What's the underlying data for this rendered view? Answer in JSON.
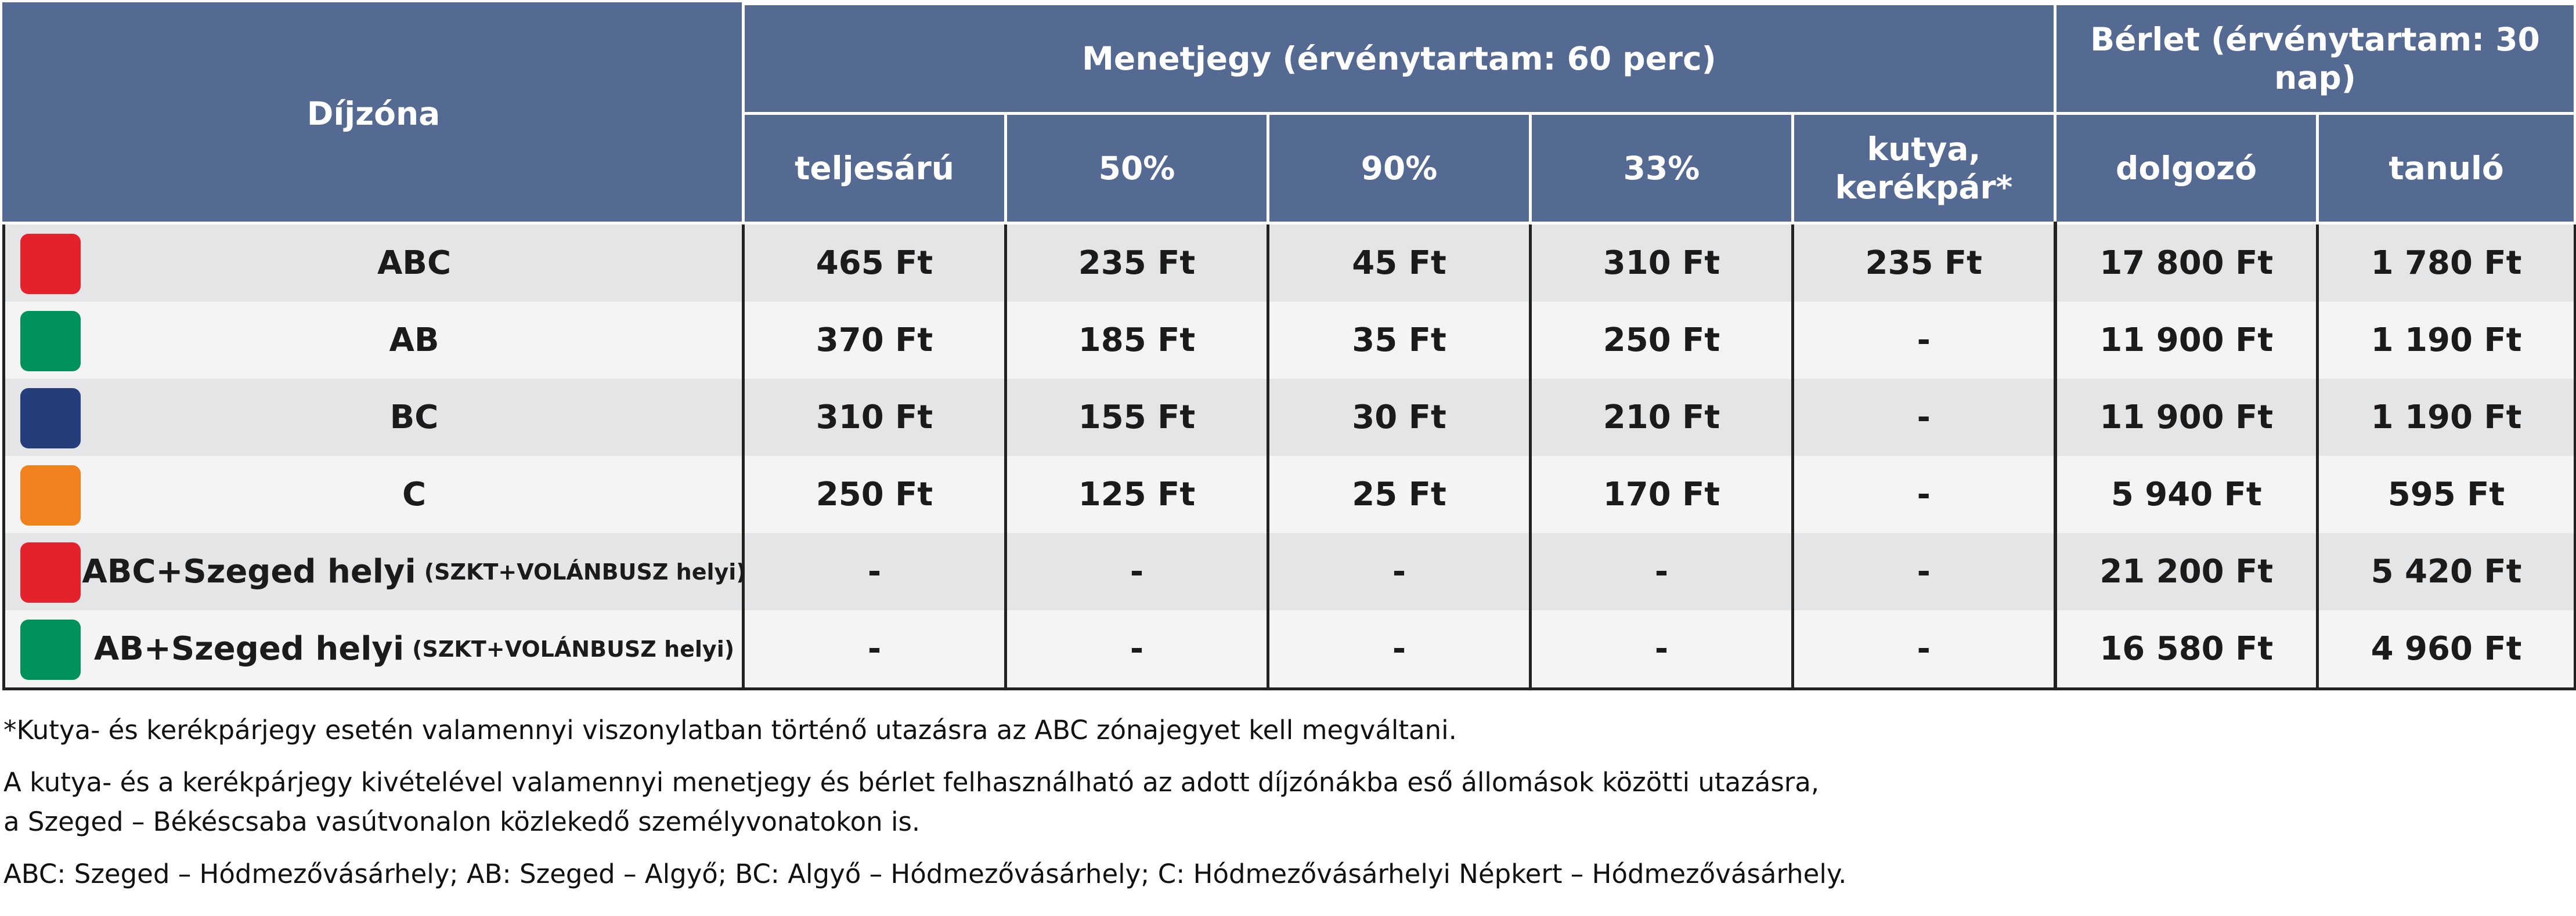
{
  "header": {
    "zone": "Díjzóna",
    "single": "Menetjegy (érvénytartam: 60 perc)",
    "pass": "Bérlet (érvénytartam: 30 nap)",
    "cols": [
      "teljesárú",
      "50%",
      "90%",
      "33%",
      "kutya,\nkerékpár*",
      "dolgozó",
      "tanuló"
    ]
  },
  "rows": [
    {
      "zone": "ABC",
      "note": "",
      "color": "#e3222d",
      "values": [
        "465 Ft",
        "235 Ft",
        "45 Ft",
        "310 Ft",
        "235 Ft",
        "17 800 Ft",
        "1 780 Ft"
      ]
    },
    {
      "zone": "AB",
      "note": "",
      "color": "#00925a",
      "values": [
        "370 Ft",
        "185 Ft",
        "35 Ft",
        "250 Ft",
        "-",
        "11 900 Ft",
        "1 190 Ft"
      ]
    },
    {
      "zone": "BC",
      "note": "",
      "color": "#253e7b",
      "values": [
        "310 Ft",
        "155 Ft",
        "30 Ft",
        "210 Ft",
        "-",
        "11 900 Ft",
        "1 190 Ft"
      ]
    },
    {
      "zone": "C",
      "note": "",
      "color": "#f0821e",
      "values": [
        "250 Ft",
        "125 Ft",
        "25 Ft",
        "170 Ft",
        "-",
        "5 940 Ft",
        "595 Ft"
      ]
    },
    {
      "zone": "ABC+Szeged helyi",
      "note": "(SZKT+VOLÁNBUSZ helyi)",
      "color": "#e3222d",
      "values": [
        "-",
        "-",
        "-",
        "-",
        "-",
        "21 200 Ft",
        "5 420 Ft"
      ]
    },
    {
      "zone": "AB+Szeged helyi",
      "note": "(SZKT+VOLÁNBUSZ helyi)",
      "color": "#00925a",
      "values": [
        "-",
        "-",
        "-",
        "-",
        "-",
        "16 580 Ft",
        "4 960 Ft"
      ]
    }
  ],
  "notes": {
    "n1": "*Kutya- és kerékpárjegy esetén valamennyi viszonylatban történő utazásra az ABC zónajegyet kell megváltani.",
    "n2": "A kutya- és a kerékpárjegy kivételével valamennyi menetjegy és bérlet felhasználható az adott díjzónákba eső állomások közötti utazásra,",
    "n3": "a Szeged – Békéscsaba vasútvonalon közlekedő személyvonatokon is.",
    "n4": "ABC: Szeged – Hódmezővásárhely; AB: Szeged – Algyő; BC: Algyő – Hódmezővásárhely; C: Hódmezővásárhelyi Népkert – Hódmezővásárhely."
  }
}
